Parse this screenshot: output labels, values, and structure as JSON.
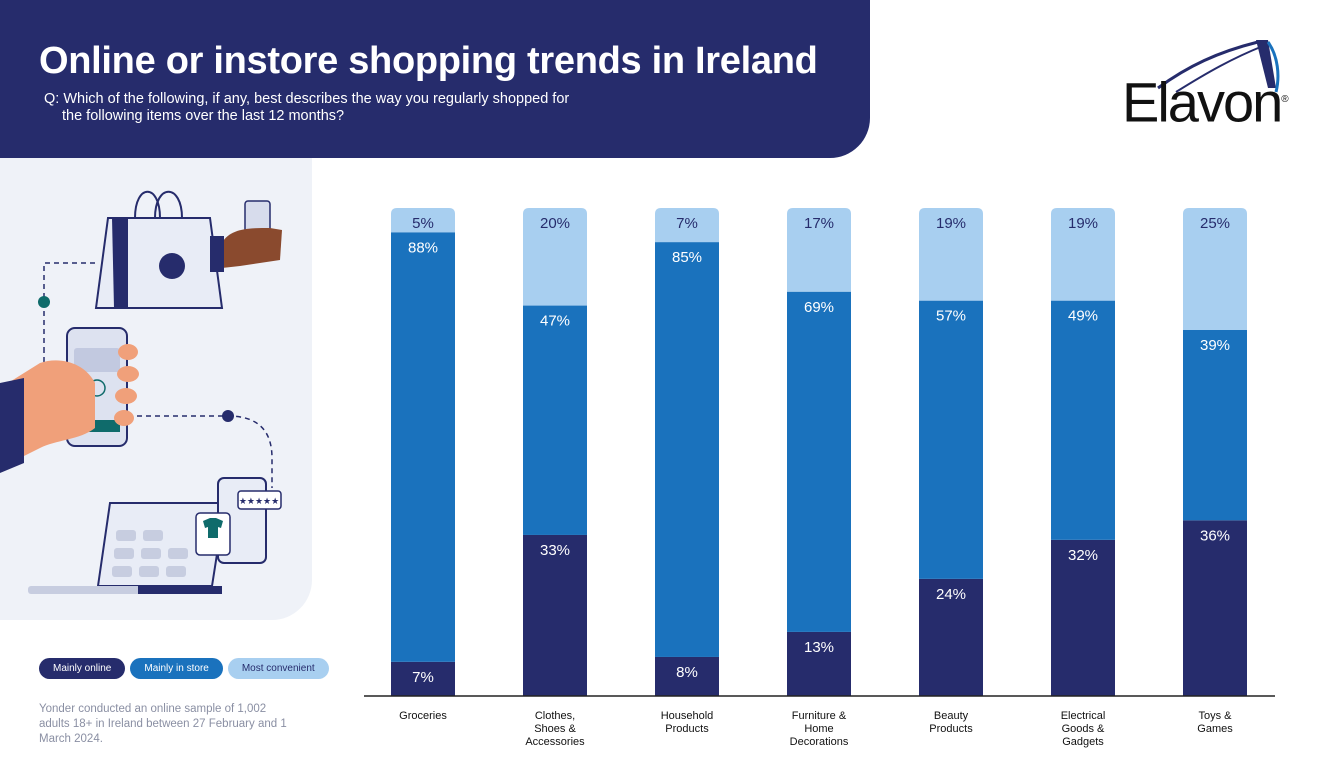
{
  "header": {
    "title": "Online or instore shopping trends in Ireland",
    "question": "Q: Which of the following, if any, best describes the way you regularly shopped for the following items over the last 12 months?"
  },
  "logo": {
    "text": "Elavon",
    "mark": "®"
  },
  "legend": {
    "mainly_online": "Mainly online",
    "mainly_in_store": "Mainly in store",
    "most_convenient": "Most convenient"
  },
  "source_note": "Yonder conducted an online sample of 1,002 adults 18+ in Ireland between 27 February and 1 March 2024.",
  "colors": {
    "navy": "#262c6c",
    "blue": "#1a72bd",
    "light_blue": "#a8cff0",
    "panel": "#eff2f8"
  },
  "chart_data": {
    "type": "bar",
    "stacked": true,
    "categories": [
      [
        "Groceries"
      ],
      [
        "Clothes,",
        "Shoes &",
        "Accessories"
      ],
      [
        "Household",
        "Products"
      ],
      [
        "Furniture &",
        "Home",
        "Decorations"
      ],
      [
        "Beauty",
        "Products"
      ],
      [
        "Electrical",
        "Goods &",
        "Gadgets"
      ],
      [
        "Toys &",
        "Games"
      ]
    ],
    "series": [
      {
        "name": "Mainly online",
        "values": [
          7,
          33,
          8,
          13,
          24,
          32,
          36
        ],
        "labels": [
          "7%",
          "33%",
          "8%",
          "13%",
          "24%",
          "32%",
          "36%"
        ]
      },
      {
        "name": "Mainly in store",
        "values": [
          88,
          47,
          85,
          69,
          57,
          49,
          39
        ],
        "labels": [
          "88%",
          "47%",
          "85%",
          "69%",
          "57%",
          "49%",
          "39%"
        ]
      },
      {
        "name": "Most convenient",
        "values": [
          5,
          20,
          7,
          17,
          19,
          19,
          25
        ],
        "labels": [
          "5%",
          "20%",
          "7%",
          "17%",
          "19%",
          "19%",
          "25%"
        ]
      }
    ],
    "ylim": [
      0,
      100
    ],
    "grid": false,
    "legend_position": "bottom-left"
  }
}
